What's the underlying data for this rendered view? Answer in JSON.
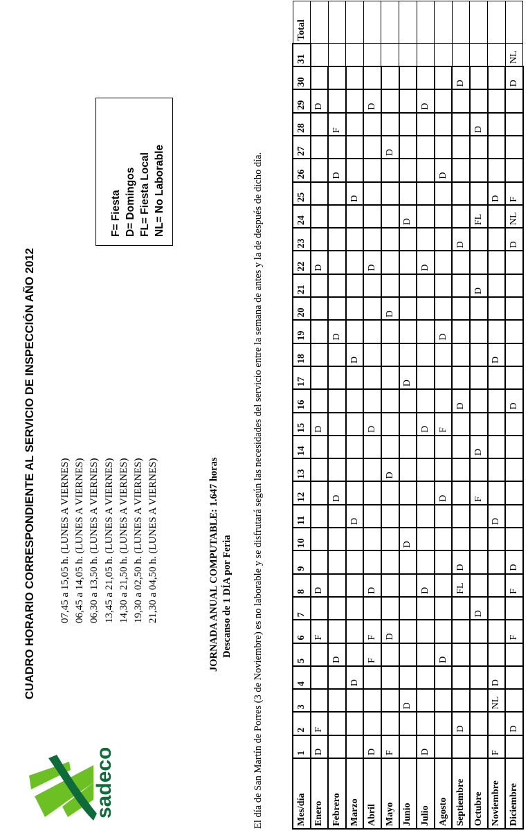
{
  "document": {
    "title": "CUADRO HORARIO CORRESPONDIENTE AL SERVICIO DE INSPECCIÓN AÑO 2012",
    "logo": {
      "text": "sadeco",
      "colors": {
        "dark_green": "#0f6b3a",
        "light_green": "#6cc024"
      }
    },
    "schedules": [
      "07,45 a 15,05 h. (LUNES A VIERNES)",
      "06,45 a 14,05 h. (LUNES A VIERNES)",
      "06,30 a 13,50 h. (LUNES A VIERNES)",
      "13,45 a 21,05 h. (LUNES A VIERNES)",
      "14,30 a 21,50 h. (LUNES A VIERNES)",
      "19,30 a 02,50 h. (LUNES A VIERNES)",
      "21,30 a 04,50 h. (LUNES A VIERNES)"
    ],
    "legend": [
      "F= Fiesta",
      "D= Domingos",
      "FL= Fiesta Local",
      "NL= No Laborable"
    ],
    "jornada": "JORNADA ANUAL COMPUTABLE: 1.647 horas",
    "descanso": "Descanso de 1 DÍA por Feria",
    "note": "El día de San Martín de Porres (3 de Noviembre) es no laborable y se disfrutará según las necesidades del servicio entre la semana de antes y la de después de dicho día."
  },
  "table": {
    "header_first": "Mes/día",
    "days": [
      "1",
      "2",
      "3",
      "4",
      "5",
      "6",
      "7",
      "8",
      "9",
      "10",
      "11",
      "12",
      "13",
      "14",
      "15",
      "16",
      "17",
      "18",
      "19",
      "20",
      "21",
      "22",
      "23",
      "24",
      "25",
      "26",
      "27",
      "28",
      "29",
      "30",
      "31"
    ],
    "header_total": "Total",
    "rows": [
      {
        "month": "Enero",
        "marks": {
          "1": "D",
          "2": "F",
          "6": "F",
          "8": "D",
          "15": "D",
          "22": "D",
          "29": "D"
        }
      },
      {
        "month": "Febrero",
        "marks": {
          "5": "D",
          "12": "D",
          "19": "D",
          "26": "D",
          "28": "F"
        }
      },
      {
        "month": "Marzo",
        "marks": {
          "4": "D",
          "11": "D",
          "18": "D",
          "25": "D"
        }
      },
      {
        "month": "Abril",
        "marks": {
          "1": "D",
          "5": "F",
          "6": "F",
          "8": "D",
          "15": "D",
          "22": "D",
          "29": "D"
        }
      },
      {
        "month": "Mayo",
        "marks": {
          "1": "F",
          "6": "D",
          "13": "D",
          "20": "D",
          "27": "D"
        }
      },
      {
        "month": "Junio",
        "marks": {
          "3": "D",
          "10": "D",
          "17": "D",
          "24": "D"
        }
      },
      {
        "month": "Julio",
        "marks": {
          "1": "D",
          "8": "D",
          "15": "D",
          "22": "D",
          "29": "D"
        }
      },
      {
        "month": "Agosto",
        "marks": {
          "5": "D",
          "12": "D",
          "15": "F",
          "19": "D",
          "26": "D"
        }
      },
      {
        "month": "Septiembre",
        "marks": {
          "2": "D",
          "8": "FL",
          "9": "D",
          "16": "D",
          "23": "D",
          "30": "D"
        }
      },
      {
        "month": "Octubre",
        "marks": {
          "7": "D",
          "12": "F",
          "14": "D",
          "21": "D",
          "24": "FL",
          "28": "D"
        }
      },
      {
        "month": "Noviembre",
        "marks": {
          "1": "F",
          "3": "NL",
          "4": "D",
          "11": "D",
          "18": "D",
          "25": "D"
        }
      },
      {
        "month": "Diciembre",
        "marks": {
          "2": "D",
          "6": "F",
          "8": "F",
          "9": "D",
          "16": "D",
          "23": "D",
          "24": "NL",
          "25": "F",
          "30": "D",
          "31": "NL"
        }
      }
    ]
  }
}
